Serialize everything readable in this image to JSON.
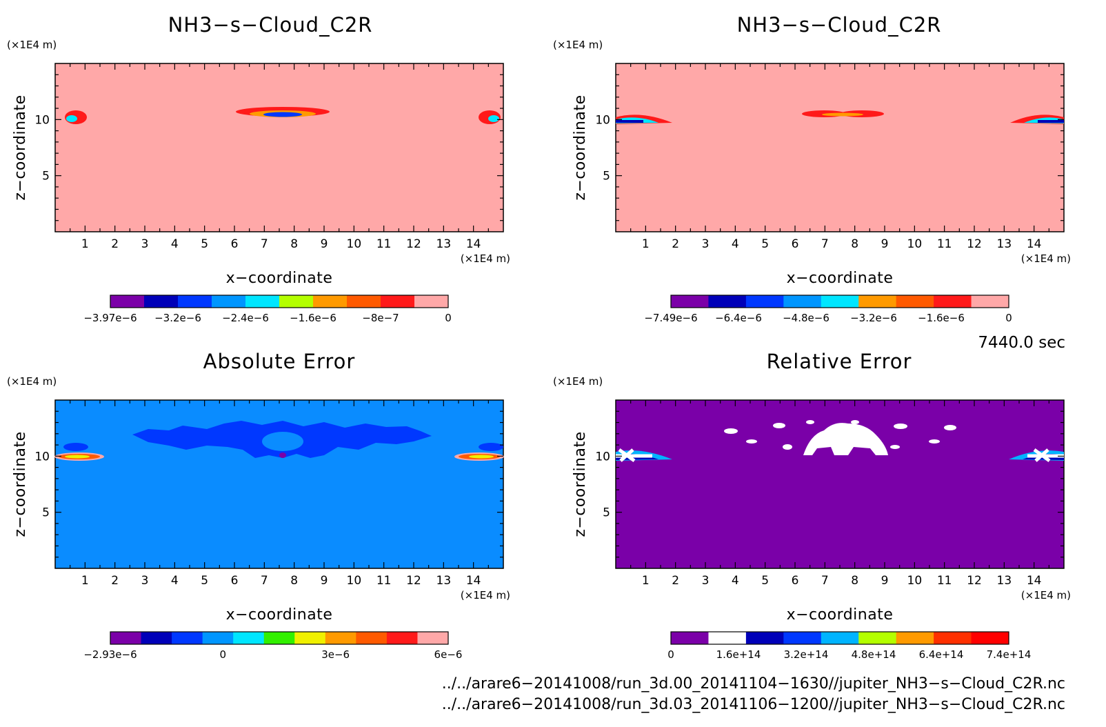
{
  "chart_data": [
    {
      "type": "heatmap",
      "title": "NH3−s−Cloud_C2R",
      "xlabel": "x−coordinate",
      "ylabel": "z−coordinate",
      "xunit": "(×1E4 m)",
      "yunit": "(×1E4 m)",
      "xlim": [
        0,
        15
      ],
      "ylim": [
        0,
        15
      ],
      "xticks": [
        "1",
        "2",
        "3",
        "4",
        "5",
        "6",
        "7",
        "8",
        "9",
        "10",
        "11",
        "12",
        "13",
        "14"
      ],
      "yticks": [
        "5",
        "10"
      ],
      "background_color": "#ffa8a8",
      "colorbar": {
        "colors": [
          "#7b00a8",
          "#0000b8",
          "#0038ff",
          "#0096ff",
          "#00e6ff",
          "#b4ff00",
          "#ff9a00",
          "#ff5a00",
          "#ff1a1a",
          "#ffa8a8"
        ],
        "tick_labels": [
          "−3.97e−6",
          "−3.2e−6",
          "−2.4e−6",
          "−1.6e−6",
          "−8e−7",
          "0"
        ]
      }
    },
    {
      "type": "heatmap",
      "title": "NH3−s−Cloud_C2R",
      "xlabel": "x−coordinate",
      "ylabel": "z−coordinate",
      "xunit": "(×1E4 m)",
      "yunit": "(×1E4 m)",
      "xlim": [
        0,
        15
      ],
      "ylim": [
        0,
        15
      ],
      "xticks": [
        "1",
        "2",
        "3",
        "4",
        "5",
        "6",
        "7",
        "8",
        "9",
        "10",
        "11",
        "12",
        "13",
        "14"
      ],
      "yticks": [
        "5",
        "10"
      ],
      "background_color": "#ffa8a8",
      "colorbar": {
        "colors": [
          "#7b00a8",
          "#0000b8",
          "#0038ff",
          "#0096ff",
          "#00e6ff",
          "#ff9a00",
          "#ff5a00",
          "#ff1a1a",
          "#ffa8a8"
        ],
        "tick_labels": [
          "−7.49e−6",
          "−6.4e−6",
          "−4.8e−6",
          "−3.2e−6",
          "−1.6e−6",
          "0"
        ]
      }
    },
    {
      "type": "heatmap",
      "title": "Absolute Error",
      "xlabel": "x−coordinate",
      "ylabel": "z−coordinate",
      "xunit": "(×1E4 m)",
      "yunit": "(×1E4 m)",
      "xlim": [
        0,
        15
      ],
      "ylim": [
        0,
        15
      ],
      "xticks": [
        "1",
        "2",
        "3",
        "4",
        "5",
        "6",
        "7",
        "8",
        "9",
        "10",
        "11",
        "12",
        "13",
        "14"
      ],
      "yticks": [
        "5",
        "10"
      ],
      "background_color": "#0a8cff",
      "colorbar": {
        "colors": [
          "#7b00a8",
          "#0000b8",
          "#0038ff",
          "#0096ff",
          "#00e6ff",
          "#32f000",
          "#f0f000",
          "#ff9a00",
          "#ff5a00",
          "#ff1a1a",
          "#ffa8a8"
        ],
        "tick_labels": [
          "−2.93e−6",
          "0",
          "3e−6",
          "6e−6"
        ]
      }
    },
    {
      "type": "heatmap",
      "title": "Relative Error",
      "xlabel": "x−coordinate",
      "ylabel": "z−coordinate",
      "xunit": "(×1E4 m)",
      "yunit": "(×1E4 m)",
      "xlim": [
        0,
        15
      ],
      "ylim": [
        0,
        15
      ],
      "xticks": [
        "1",
        "2",
        "3",
        "4",
        "5",
        "6",
        "7",
        "8",
        "9",
        "10",
        "11",
        "12",
        "13",
        "14"
      ],
      "yticks": [
        "5",
        "10"
      ],
      "background_color": "#7a00a8",
      "colorbar": {
        "colors": [
          "#7b00a8",
          "#ffffff",
          "#0000b8",
          "#0038ff",
          "#00b4ff",
          "#b4ff00",
          "#ff9a00",
          "#ff3000",
          "#ff0000"
        ],
        "tick_labels": [
          "0",
          "1.6e+14",
          "3.2e+14",
          "4.8e+14",
          "6.4e+14",
          "7.4e+14"
        ]
      }
    }
  ],
  "time_label": "7440.0 sec",
  "files": [
    "../../arare6−20141008/run_3d.00_20141104−1630//jupiter_NH3−s−Cloud_C2R.nc",
    "../../arare6−20141008/run_3d.03_20141106−1200//jupiter_NH3−s−Cloud_C2R.nc"
  ]
}
